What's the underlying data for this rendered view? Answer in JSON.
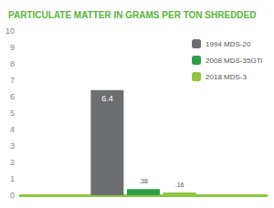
{
  "chart_data": {
    "type": "bar",
    "title": "PARTICULATE MATTER IN GRAMS PER TON SHREDDED",
    "categories": [
      null
    ],
    "series": [
      {
        "name": "1994 MDS-20",
        "color": "#6d6e71",
        "values": [
          6.4
        ],
        "value_labels": [
          "6.4"
        ]
      },
      {
        "name": "2008 MDS-35GTi",
        "color": "#2e9e48",
        "values": [
          0.38
        ],
        "value_labels": [
          ".38"
        ]
      },
      {
        "name": "2018 MDS-3",
        "color": "#8dc63f",
        "values": [
          0.16
        ],
        "value_labels": [
          ".16"
        ]
      }
    ],
    "ylim": [
      0,
      10
    ],
    "yticks": [
      0,
      1,
      2,
      3,
      4,
      5,
      6,
      7,
      8,
      9,
      10
    ],
    "grid": false,
    "legend": "upper right",
    "data_labels": true
  }
}
